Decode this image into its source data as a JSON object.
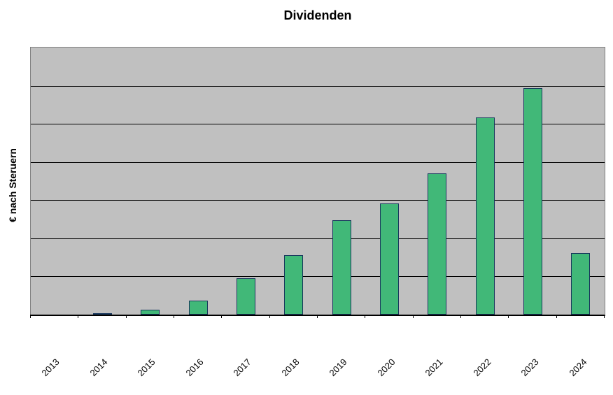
{
  "chart": {
    "title": "Dividenden",
    "ylabel": "€ nach Steruern"
  },
  "chart_data": {
    "type": "bar",
    "title": "Dividenden",
    "xlabel": "",
    "ylabel": "€ nach Steruern",
    "categories": [
      "2013",
      "2014",
      "2015",
      "2016",
      "2017",
      "2018",
      "2019",
      "2020",
      "2021",
      "2022",
      "2023",
      "2024"
    ],
    "values": [
      0,
      0.04,
      0.13,
      0.36,
      0.96,
      1.55,
      2.47,
      2.91,
      3.71,
      5.16,
      5.93,
      1.62
    ],
    "ylim": [
      0,
      7
    ],
    "y_axis_tick_labels": "none (no numeric labels shown; values estimated in gridline units, 1 unit = 1 horizontal gridline interval)",
    "gridlines": "horizontal, 7 equal intervals, black lines on gray plot background",
    "legend": "none",
    "x_tick_marks": "at category boundaries, below axis",
    "colors": {
      "bar_fill": "#41B878",
      "bar_border": "#16365C",
      "plot_background": "#C0C0C0",
      "gridline": "#000000",
      "plot_border": "#808080",
      "axis_line": "#000000",
      "page_background": "#FFFFFF",
      "text": "#000000"
    }
  }
}
